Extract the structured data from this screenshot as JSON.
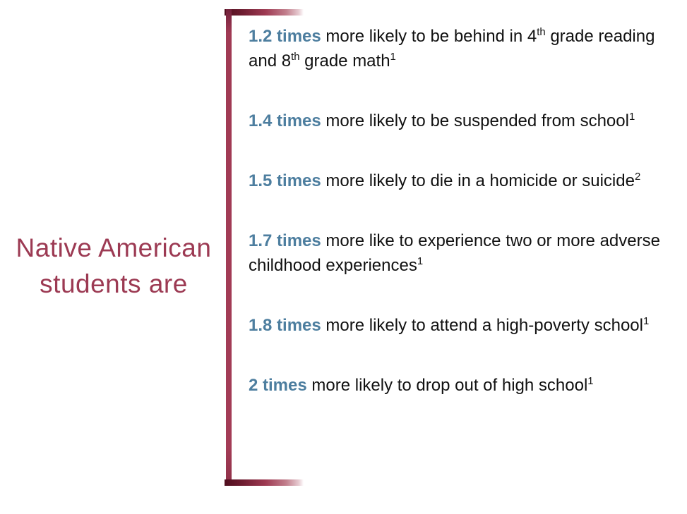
{
  "page": {
    "background": "#ffffff",
    "accent_maroon": "#9c3a53",
    "accent_blue": "#4d7e9f",
    "body_text_color": "#111111"
  },
  "title": {
    "text": "Native American students are"
  },
  "bracket": {
    "shape": "left-bracket",
    "bar_color": "#a03a54",
    "gradient_dark": "#4f0e1e",
    "gradient_light": "#ffffff"
  },
  "stats": [
    {
      "multiplier": "1.2 times",
      "parts": [
        {
          "text": "more likely to be behind in 4"
        },
        {
          "sup": "th"
        },
        {
          "text": " grade reading and 8"
        },
        {
          "sup": "th"
        },
        {
          "text": " grade math"
        },
        {
          "sup": "1"
        }
      ]
    },
    {
      "multiplier": "1.4 times",
      "parts": [
        {
          "text": "more likely to be suspended from school"
        },
        {
          "sup": "1"
        }
      ]
    },
    {
      "multiplier": "1.5 times",
      "parts": [
        {
          "text": "more likely to die in a homicide or suicide"
        },
        {
          "sup": "2"
        }
      ]
    },
    {
      "multiplier": "1.7 times",
      "parts": [
        {
          "text": "more like to experience two or more adverse childhood experiences"
        },
        {
          "sup": "1"
        }
      ]
    },
    {
      "multiplier": "1.8 times",
      "parts": [
        {
          "text": "more likely to attend a high-poverty school"
        },
        {
          "sup": "1"
        }
      ]
    },
    {
      "multiplier": "2 times",
      "parts": [
        {
          "text": "more likely to drop out of high school"
        },
        {
          "sup": "1"
        }
      ]
    }
  ]
}
